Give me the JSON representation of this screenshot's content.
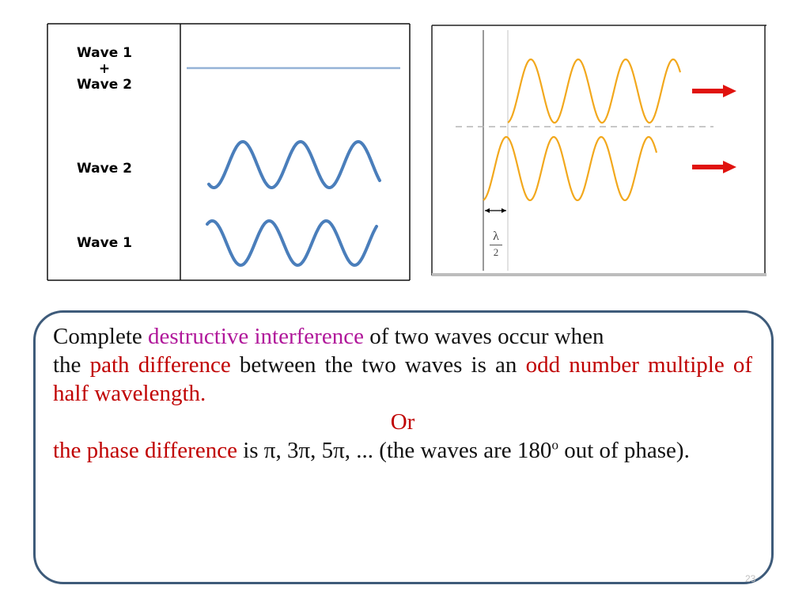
{
  "figure_left": {
    "labels": {
      "sum_line1": "Wave 1",
      "sum_line2": "+",
      "sum_line3": "Wave 2",
      "wave2": "Wave 2",
      "wave1": "Wave 1"
    },
    "wave_color": "#4a7ebb",
    "sum_color": "#95b3d7"
  },
  "figure_right": {
    "wave_color": "#f2a81d",
    "arrow_color": "#e0120e",
    "marker": {
      "numerator": "λ",
      "denominator": "2"
    }
  },
  "definition": {
    "p1_a": "Complete ",
    "p1_b": "destructive interference",
    "p1_c": " of two waves occur when",
    "p2_a": "the ",
    "p2_b": "path difference",
    "p2_c": " between the two waves is an ",
    "p2_d": "odd number multiple of half wavelength.",
    "or": "Or",
    "p4_a": "the phase difference",
    "p4_b": " is π, 3π, 5π, ... (the waves are 180",
    "p4_sup": "o",
    "p4_c": " out of phase)."
  },
  "slide_number": "23"
}
